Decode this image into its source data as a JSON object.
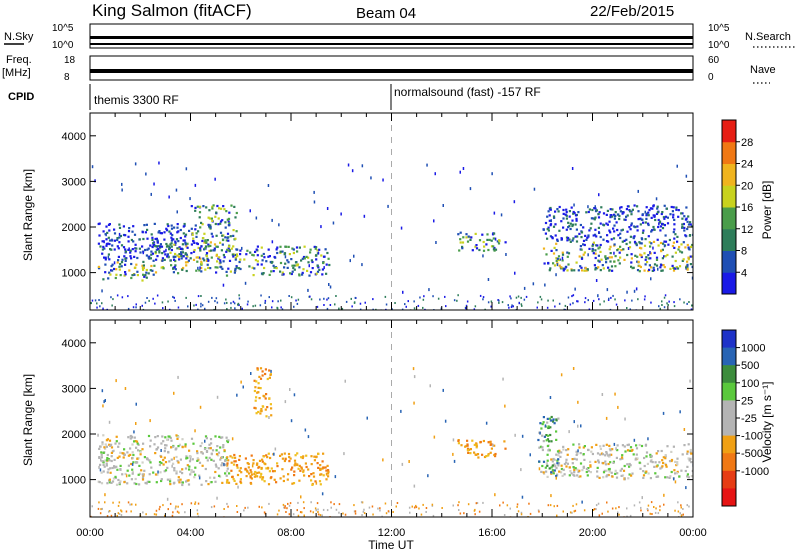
{
  "header": {
    "station": "King Salmon (fitACF)",
    "beam": "Beam 04",
    "date": "22/Feb/2015"
  },
  "status_panels": {
    "nsky_label": "N.Sky",
    "nsearch_label": "N.Search",
    "noise_ticks": [
      "10^5",
      "10^0"
    ],
    "freq_label": "Freq.",
    "freq_unit": "[MHz]",
    "freq_ticks": [
      "18",
      "8"
    ],
    "nave_label": "Nave",
    "nave_ticks": [
      "60",
      "0"
    ],
    "cpid_label": "CPID",
    "cpid_segments": [
      {
        "label": "themis 3300 RF",
        "start_hour": 0
      },
      {
        "label": "normalsound (fast) -157 RF",
        "start_hour": 12
      }
    ]
  },
  "colors": {
    "power_scale": [
      "#1a1ae6",
      "#1f4fb4",
      "#2e7d5a",
      "#4a9d4a",
      "#c8d21e",
      "#f0b41e",
      "#f07814",
      "#e61e14"
    ],
    "velocity_scale": [
      "#1e32c8",
      "#2864b4",
      "#3c8c3c",
      "#5ac83c",
      "#b4b4b4",
      "#b4b4b4",
      "#f0a014",
      "#f07814",
      "#e63c14",
      "#e61414"
    ]
  },
  "chart_data": [
    {
      "type": "heatmap",
      "name": "power",
      "xlabel": "",
      "ylabel": "Slant Range [km]",
      "xlim": [
        0,
        24
      ],
      "ylim": [
        180,
        4500
      ],
      "yticks": [
        1000,
        2000,
        3000,
        4000
      ],
      "colorbar": {
        "label": "Power [dB]",
        "ticks": [
          4,
          8,
          12,
          16,
          20,
          24,
          28
        ],
        "range": [
          0,
          32
        ]
      },
      "bands": [
        {
          "t0": 0.3,
          "t1": 2.5,
          "r0": 850,
          "r1": 1250,
          "level": "strong"
        },
        {
          "t0": 2.5,
          "t1": 5.2,
          "r0": 1000,
          "r1": 1700,
          "level": "strong"
        },
        {
          "t0": 0.3,
          "t1": 4.0,
          "r0": 1250,
          "r1": 2100,
          "level": "weak"
        },
        {
          "t0": 4.0,
          "t1": 5.8,
          "r0": 1500,
          "r1": 2500,
          "level": "medium"
        },
        {
          "t0": 5.2,
          "t1": 9.5,
          "r0": 950,
          "r1": 1600,
          "level": "medium"
        },
        {
          "t0": 14.6,
          "t1": 16.5,
          "r0": 1500,
          "r1": 1900,
          "level": "medium"
        },
        {
          "t0": 18.0,
          "t1": 24.0,
          "r0": 1050,
          "r1": 1700,
          "level": "strong"
        },
        {
          "t0": 18.0,
          "t1": 24.0,
          "r0": 1700,
          "r1": 2500,
          "level": "weak"
        }
      ]
    },
    {
      "type": "heatmap",
      "name": "velocity",
      "xlabel": "Time UT",
      "ylabel": "Slant Range [km]",
      "xlim": [
        0,
        24
      ],
      "ylim": [
        180,
        4500
      ],
      "xticks": [
        "00:00",
        "04:00",
        "08:00",
        "12:00",
        "16:00",
        "20:00",
        "00:00"
      ],
      "yticks": [
        1000,
        2000,
        3000,
        4000
      ],
      "colorbar": {
        "label": "Velocity [m s⁻¹]",
        "ticks": [
          "1000",
          "500",
          "100",
          "25",
          "-25",
          "-100",
          "-500",
          "-1000"
        ]
      },
      "bands": [
        {
          "t0": 0.3,
          "t1": 5.5,
          "r0": 900,
          "r1": 2000,
          "level": "ground"
        },
        {
          "t0": 5.3,
          "t1": 9.5,
          "r0": 900,
          "r1": 1600,
          "level": "negative"
        },
        {
          "t0": 6.5,
          "t1": 7.2,
          "r0": 2400,
          "r1": 3500,
          "level": "negative"
        },
        {
          "t0": 14.6,
          "t1": 16.5,
          "r0": 1500,
          "r1": 1900,
          "level": "negative"
        },
        {
          "t0": 18.0,
          "t1": 24.0,
          "r0": 1050,
          "r1": 1800,
          "level": "ground"
        },
        {
          "t0": 17.8,
          "t1": 18.6,
          "r0": 1100,
          "r1": 2400,
          "level": "positive"
        }
      ]
    }
  ]
}
